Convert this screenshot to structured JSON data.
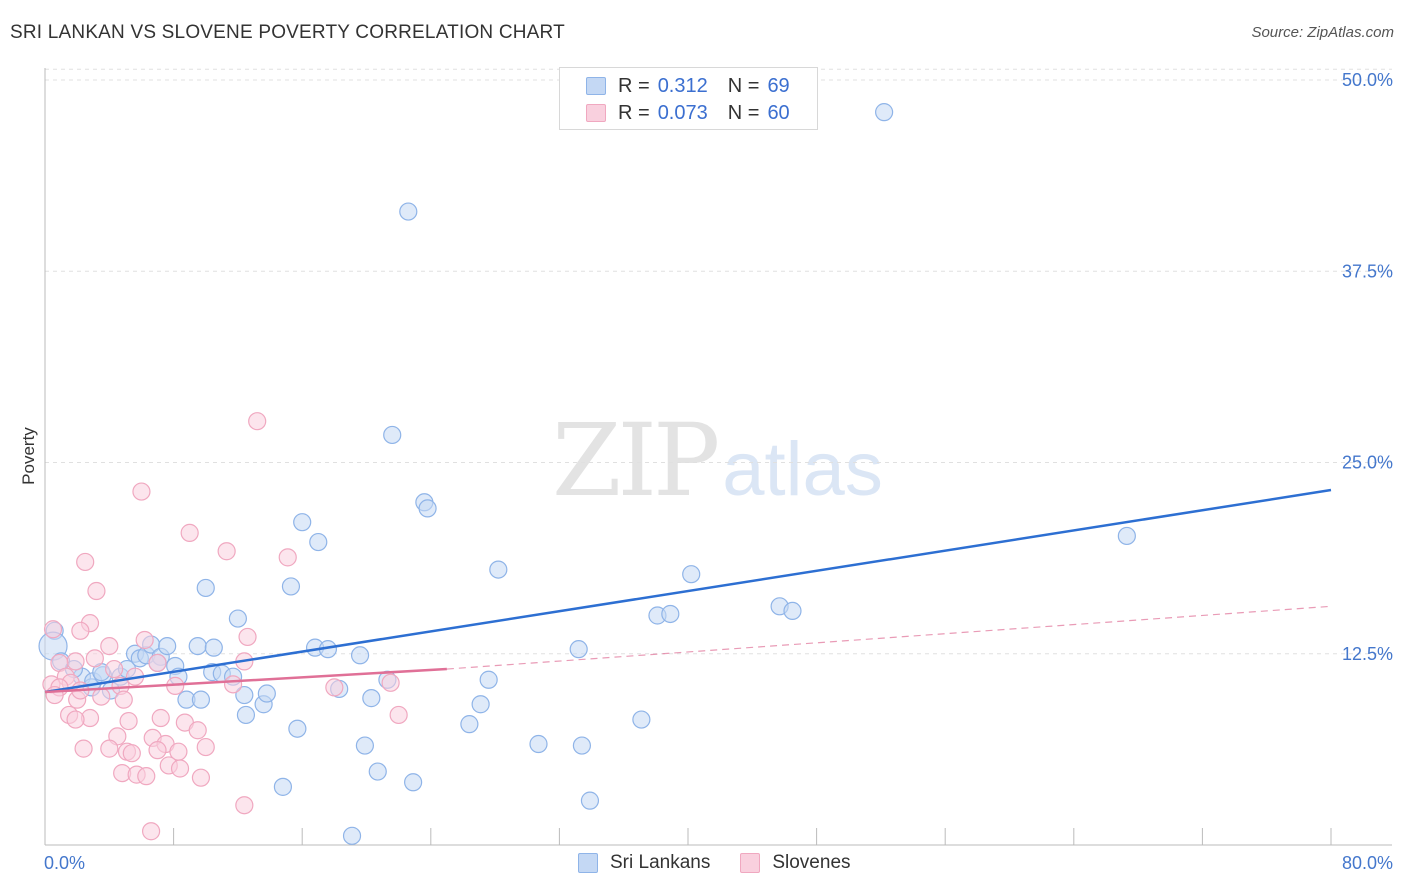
{
  "header": {
    "title": "SRI LANKAN VS SLOVENE POVERTY CORRELATION CHART",
    "source": "Source: ZipAtlas.com"
  },
  "legend": {
    "r_label": "R =",
    "n_label": "N =",
    "rows": [
      {
        "series": "Sri Lankans",
        "r": "0.312",
        "n": "69",
        "color": "#8fb4e8",
        "fill": "#c4d8f4"
      },
      {
        "series": "Slovenes",
        "r": "0.073",
        "n": "60",
        "color": "#f0a8c0",
        "fill": "#f9d0de"
      }
    ]
  },
  "bottom_legend": {
    "items": [
      "Sri Lankans",
      "Slovenes"
    ]
  },
  "watermark": {
    "zip": "ZIP",
    "atlas": "atlas"
  },
  "colors": {
    "blue_line": "#2d6fd2",
    "pink_line": "#e07097",
    "blue_point_stroke": "#8fb4e8",
    "blue_point_fill": "#c4d8f4",
    "pink_point_stroke": "#f0a8c0",
    "pink_point_fill": "#f9d0de",
    "tick_text": "#4477cc",
    "grid": "#e0e0e0"
  },
  "chart_data": {
    "type": "scatter",
    "title": "SRI LANKAN VS SLOVENE POVERTY CORRELATION CHART",
    "xlabel": "",
    "ylabel": "Poverty",
    "xlim": [
      0,
      80
    ],
    "ylim": [
      0,
      50
    ],
    "x_tick_labels": [
      "0.0%",
      "80.0%"
    ],
    "y_ticks": [
      12.5,
      25.0,
      37.5,
      50.0
    ],
    "y_tick_labels": [
      "12.5%",
      "25.0%",
      "37.5%",
      "50.0%"
    ],
    "grid": "horizontal dashed",
    "legend_placement": "top-center",
    "series": [
      {
        "name": "Sri Lankans",
        "r": 0.312,
        "n": 69,
        "trend": {
          "x": [
            0,
            80
          ],
          "y": [
            10.0,
            23.2
          ],
          "style": "solid"
        },
        "points": [
          [
            52.2,
            47.9
          ],
          [
            22.6,
            41.4
          ],
          [
            21.6,
            26.8
          ],
          [
            23.6,
            22.4
          ],
          [
            23.8,
            22.0
          ],
          [
            67.3,
            20.2
          ],
          [
            16.0,
            21.1
          ],
          [
            17.0,
            19.8
          ],
          [
            28.2,
            18.0
          ],
          [
            40.2,
            17.7
          ],
          [
            10.0,
            16.8
          ],
          [
            15.3,
            16.9
          ],
          [
            38.1,
            15.0
          ],
          [
            38.9,
            15.1
          ],
          [
            45.7,
            15.6
          ],
          [
            46.5,
            15.3
          ],
          [
            12.0,
            14.8
          ],
          [
            0.6,
            14.0
          ],
          [
            0.5,
            13.0
          ],
          [
            1.0,
            12.0
          ],
          [
            2.3,
            11.0
          ],
          [
            2.9,
            10.3
          ],
          [
            3.0,
            10.7
          ],
          [
            3.6,
            11.1
          ],
          [
            4.1,
            10.1
          ],
          [
            4.7,
            11.0
          ],
          [
            5.1,
            11.5
          ],
          [
            5.6,
            12.5
          ],
          [
            5.9,
            12.2
          ],
          [
            6.3,
            12.4
          ],
          [
            6.6,
            13.1
          ],
          [
            7.2,
            12.3
          ],
          [
            7.6,
            13.0
          ],
          [
            8.1,
            11.7
          ],
          [
            8.3,
            11.0
          ],
          [
            9.5,
            13.0
          ],
          [
            10.5,
            12.9
          ],
          [
            10.4,
            11.3
          ],
          [
            11.0,
            11.2
          ],
          [
            11.7,
            11.0
          ],
          [
            12.4,
            9.8
          ],
          [
            13.6,
            9.2
          ],
          [
            13.8,
            9.9
          ],
          [
            8.8,
            9.5
          ],
          [
            9.7,
            9.5
          ],
          [
            12.5,
            8.5
          ],
          [
            15.7,
            7.6
          ],
          [
            16.8,
            12.9
          ],
          [
            17.6,
            12.8
          ],
          [
            18.3,
            10.2
          ],
          [
            19.6,
            12.4
          ],
          [
            20.3,
            9.6
          ],
          [
            21.3,
            10.8
          ],
          [
            19.9,
            6.5
          ],
          [
            20.7,
            4.8
          ],
          [
            22.9,
            4.1
          ],
          [
            27.1,
            9.2
          ],
          [
            27.6,
            10.8
          ],
          [
            26.4,
            7.9
          ],
          [
            30.7,
            6.6
          ],
          [
            33.2,
            12.8
          ],
          [
            33.4,
            6.5
          ],
          [
            33.9,
            2.9
          ],
          [
            37.1,
            8.2
          ],
          [
            14.8,
            3.8
          ],
          [
            19.1,
            0.6
          ],
          [
            1.8,
            11.5
          ],
          [
            3.5,
            11.3
          ],
          [
            7.0,
            11.9
          ]
        ]
      },
      {
        "name": "Slovenes",
        "r": 0.073,
        "n": 60,
        "trend": {
          "x": [
            0,
            25
          ],
          "y": [
            10.0,
            11.5
          ],
          "style": "solid"
        },
        "trend_extended": {
          "x": [
            25,
            80
          ],
          "y": [
            11.5,
            15.6
          ],
          "style": "dashed"
        },
        "points": [
          [
            13.2,
            27.7
          ],
          [
            6.0,
            23.1
          ],
          [
            9.0,
            20.4
          ],
          [
            11.3,
            19.2
          ],
          [
            15.1,
            18.8
          ],
          [
            2.5,
            18.5
          ],
          [
            3.2,
            16.6
          ],
          [
            2.8,
            14.5
          ],
          [
            2.2,
            14.0
          ],
          [
            0.5,
            14.1
          ],
          [
            4.0,
            13.0
          ],
          [
            6.2,
            13.4
          ],
          [
            12.6,
            13.6
          ],
          [
            3.1,
            12.2
          ],
          [
            1.9,
            12.0
          ],
          [
            0.9,
            11.9
          ],
          [
            4.3,
            11.5
          ],
          [
            5.6,
            11.0
          ],
          [
            7.0,
            11.9
          ],
          [
            12.4,
            12.0
          ],
          [
            1.3,
            11.0
          ],
          [
            1.6,
            10.6
          ],
          [
            0.4,
            10.5
          ],
          [
            0.9,
            10.3
          ],
          [
            4.7,
            10.4
          ],
          [
            8.1,
            10.4
          ],
          [
            11.7,
            10.5
          ],
          [
            18.0,
            10.3
          ],
          [
            21.5,
            10.6
          ],
          [
            2.0,
            9.5
          ],
          [
            3.5,
            9.7
          ],
          [
            4.9,
            9.5
          ],
          [
            1.5,
            8.5
          ],
          [
            2.8,
            8.3
          ],
          [
            5.2,
            8.1
          ],
          [
            7.2,
            8.3
          ],
          [
            8.7,
            8.0
          ],
          [
            9.5,
            7.5
          ],
          [
            1.9,
            8.2
          ],
          [
            4.5,
            7.1
          ],
          [
            6.7,
            7.0
          ],
          [
            7.5,
            6.6
          ],
          [
            2.4,
            6.3
          ],
          [
            4.0,
            6.3
          ],
          [
            5.1,
            6.1
          ],
          [
            5.4,
            6.0
          ],
          [
            7.0,
            6.2
          ],
          [
            8.3,
            6.1
          ],
          [
            10.0,
            6.4
          ],
          [
            22.0,
            8.5
          ],
          [
            4.8,
            4.7
          ],
          [
            5.7,
            4.6
          ],
          [
            6.3,
            4.5
          ],
          [
            7.7,
            5.2
          ],
          [
            8.4,
            5.0
          ],
          [
            9.7,
            4.4
          ],
          [
            12.4,
            2.6
          ],
          [
            6.6,
            0.9
          ],
          [
            0.6,
            9.8
          ],
          [
            2.2,
            10.1
          ]
        ]
      }
    ]
  }
}
